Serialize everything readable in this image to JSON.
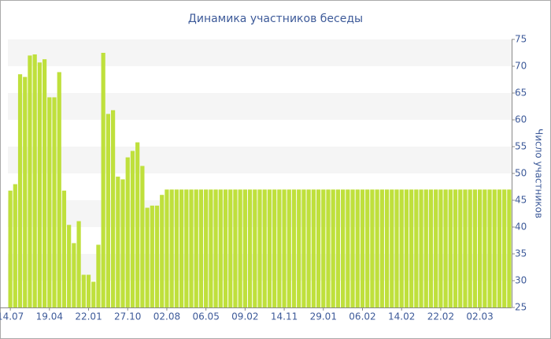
{
  "chart_data": {
    "type": "bar",
    "title": "Динамика участников беседы",
    "y_label": "Число участников",
    "categories": [
      "14.07",
      null,
      null,
      null,
      null,
      null,
      null,
      null,
      "19.04",
      null,
      null,
      null,
      null,
      null,
      null,
      null,
      "22.01",
      null,
      null,
      null,
      null,
      null,
      null,
      null,
      "27.10",
      null,
      null,
      null,
      null,
      null,
      null,
      null,
      "02.08",
      null,
      null,
      null,
      null,
      null,
      null,
      null,
      "06.05",
      null,
      null,
      null,
      null,
      null,
      null,
      null,
      "09.02",
      null,
      null,
      null,
      null,
      null,
      null,
      null,
      "14.11",
      null,
      null,
      null,
      null,
      null,
      null,
      null,
      "29.01",
      null,
      null,
      null,
      null,
      null,
      null,
      null,
      "06.02",
      null,
      null,
      null,
      null,
      null,
      null,
      null,
      "14.02",
      null,
      null,
      null,
      null,
      null,
      null,
      null,
      "22.02",
      null,
      null,
      null,
      null,
      null,
      null,
      null,
      "02.03",
      null,
      null,
      null,
      null,
      null,
      null
    ],
    "values": [
      46.8,
      48,
      68.5,
      68,
      72,
      72.2,
      70.7,
      71.3,
      64.2,
      64.2,
      68.9,
      46.8,
      40.4,
      37,
      41.1,
      31.1,
      31.1,
      29.8,
      36.7,
      72.5,
      61.1,
      61.8,
      49.4,
      48.9,
      53,
      54.2,
      55.8,
      51.4,
      43.6,
      44,
      44,
      46,
      47,
      47,
      47,
      47,
      47,
      47,
      47,
      47,
      47,
      47,
      47,
      47,
      47,
      47,
      47,
      47,
      47,
      47,
      47,
      47,
      47,
      47,
      47,
      47,
      47,
      47,
      47,
      47,
      47,
      47,
      47,
      47,
      47,
      47,
      47,
      47,
      47,
      47,
      47,
      47,
      47,
      47,
      47,
      47,
      47,
      47,
      47,
      47,
      47,
      47,
      47,
      47,
      47,
      47,
      47,
      47,
      47,
      47,
      47,
      47,
      47,
      47,
      47,
      47,
      47,
      47,
      47,
      47,
      47,
      47,
      47
    ],
    "color": "#bfe03c",
    "ylim": [
      25,
      75
    ],
    "yticks": [
      25,
      30,
      35,
      40,
      45,
      50,
      55,
      60,
      65,
      70,
      75
    ],
    "y_axis_side": "right",
    "grid_bands": true
  }
}
